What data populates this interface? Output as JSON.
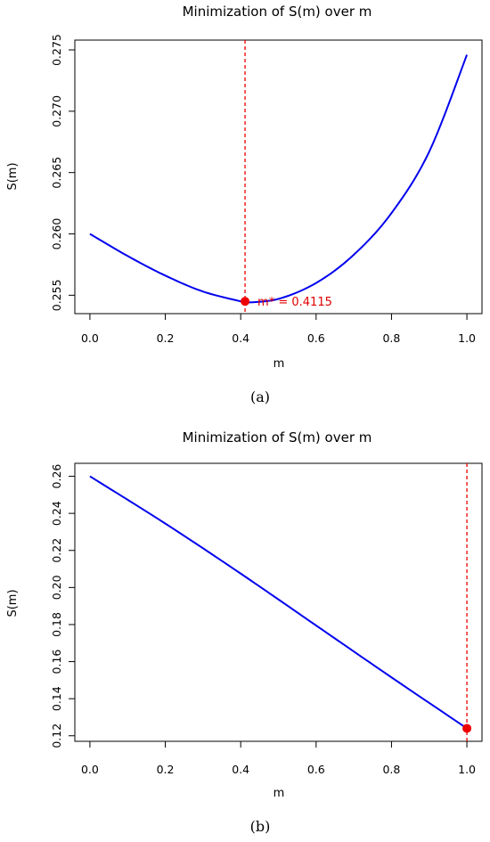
{
  "chart_data": [
    {
      "type": "line",
      "panel_label": "(a)",
      "title": "Minimization of S(m) over m",
      "xlabel": "m",
      "ylabel": "S(m)",
      "xlim": [
        -0.04,
        1.04
      ],
      "ylim": [
        0.2535,
        0.2758
      ],
      "xticks": [
        0.0,
        0.2,
        0.4,
        0.6,
        0.8,
        1.0
      ],
      "xtick_labels": [
        "0.0",
        "0.2",
        "0.4",
        "0.6",
        "0.8",
        "1.0"
      ],
      "yticks": [
        0.255,
        0.26,
        0.265,
        0.27,
        0.275
      ],
      "ytick_labels": [
        "0.255",
        "0.260",
        "0.265",
        "0.270",
        "0.275"
      ],
      "series": [
        {
          "color": "#0000ee",
          "x": [
            0.0,
            0.1,
            0.2,
            0.3,
            0.4,
            0.4115,
            0.5,
            0.6,
            0.7,
            0.8,
            0.9,
            1.0
          ],
          "y": [
            0.26,
            0.2582,
            0.2566,
            0.2553,
            0.2545,
            0.2544,
            0.2547,
            0.256,
            0.2583,
            0.2617,
            0.2667,
            0.2746
          ]
        }
      ],
      "optimum": {
        "x": 0.4115,
        "y": 0.2545,
        "color": "#ee0000",
        "label": "m* = 0.4115"
      },
      "grid": false
    },
    {
      "type": "line",
      "panel_label": "(b)",
      "title": "Minimization of S(m) over m",
      "xlabel": "m",
      "ylabel": "S(m)",
      "xlim": [
        -0.04,
        1.04
      ],
      "ylim": [
        0.117,
        0.267
      ],
      "xticks": [
        0.0,
        0.2,
        0.4,
        0.6,
        0.8,
        1.0
      ],
      "xtick_labels": [
        "0.0",
        "0.2",
        "0.4",
        "0.6",
        "0.8",
        "1.0"
      ],
      "yticks": [
        0.12,
        0.14,
        0.16,
        0.18,
        0.2,
        0.22,
        0.24,
        0.26
      ],
      "ytick_labels": [
        "0.12",
        "0.14",
        "0.16",
        "0.18",
        "0.20",
        "0.22",
        "0.24",
        "0.26"
      ],
      "series": [
        {
          "color": "#0000ee",
          "x": [
            0.0,
            0.2,
            0.4,
            0.6,
            0.8,
            1.0
          ],
          "y": [
            0.26,
            0.2345,
            0.2075,
            0.1795,
            0.1515,
            0.124
          ]
        }
      ],
      "optimum": {
        "x": 1.0,
        "y": 0.124,
        "color": "#ee0000",
        "label": ""
      },
      "grid": false
    }
  ]
}
